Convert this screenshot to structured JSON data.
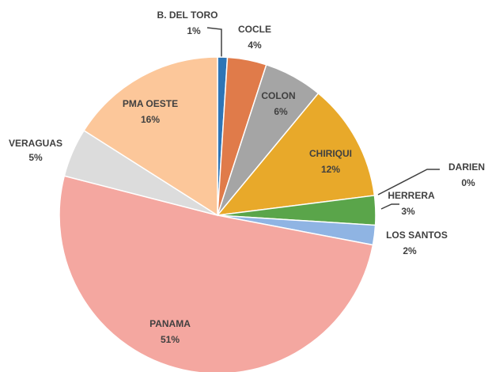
{
  "chart_data": {
    "type": "pie",
    "categories": [
      "B. DEL TORO",
      "COCLE",
      "COLON",
      "CHIRIQUI",
      "DARIEN",
      "HERRERA",
      "LOS SANTOS",
      "PANAMA",
      "VERAGUAS",
      "PMA OESTE"
    ],
    "values": [
      1,
      4,
      6,
      12,
      0,
      3,
      2,
      51,
      5,
      16
    ],
    "value_labels": [
      "1%",
      "4%",
      "6%",
      "12%",
      "0%",
      "3%",
      "2%",
      "51%",
      "5%",
      "16%"
    ],
    "colors": [
      "#2e75b6",
      "#e07b4a",
      "#a5a5a5",
      "#e8a92a",
      "#2e75b6",
      "#5aa54a",
      "#8fb4e3",
      "#f4a7a0",
      "#dcdcdc",
      "#fcc79a"
    ]
  }
}
